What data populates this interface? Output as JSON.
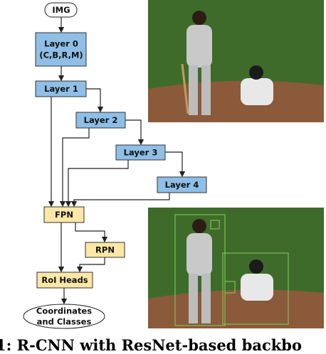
{
  "diagram": {
    "nodes": [
      {
        "lines": [
          "IMG"
        ]
      },
      {
        "lines": [
          "Layer 0",
          "(C,B,R,M)"
        ]
      },
      {
        "lines": [
          "Layer 1"
        ]
      },
      {
        "lines": [
          "Layer 2"
        ]
      },
      {
        "lines": [
          "Layer 3"
        ]
      },
      {
        "lines": [
          "Layer 4"
        ]
      },
      {
        "lines": [
          "FPN"
        ]
      },
      {
        "lines": [
          "RPN"
        ]
      },
      {
        "lines": [
          "RoI Heads"
        ]
      },
      {
        "lines": [
          "Coordinates",
          "and Classes"
        ]
      }
    ]
  },
  "caption": "1: R-CNN with ResNet-based backbo"
}
